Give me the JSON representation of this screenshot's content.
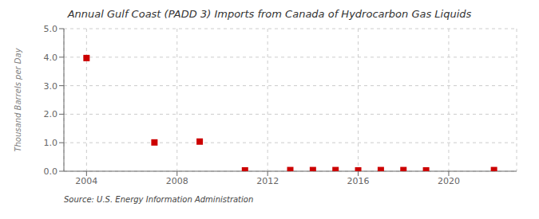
{
  "chart_data": {
    "type": "scatter",
    "title": "Annual Gulf Coast (PADD 3) Imports from Canada of Hydrocarbon Gas Liquids",
    "y_label": "Thousand Barrels per Day",
    "annotation": "Source: U.S. Energy Information Administration",
    "x": [
      2004,
      2007,
      2009,
      2011,
      2013,
      2014,
      2015,
      2016,
      2017,
      2018,
      2019,
      2022
    ],
    "values": [
      3.97,
      1.01,
      1.04,
      0.03,
      0.04,
      0.04,
      0.04,
      0.03,
      0.04,
      0.04,
      0.03,
      0.04
    ],
    "color": "#cc0000",
    "marker": "square",
    "xlim": [
      2003.0,
      2023.0
    ],
    "xticks": [
      2004,
      2008,
      2012,
      2016,
      2020
    ],
    "ylim": [
      0.0,
      5.0
    ],
    "yticks": [
      {
        "value": 0.0,
        "label": "0.0"
      },
      {
        "value": 1.0,
        "label": "1.0"
      },
      {
        "value": 2.0,
        "label": "2.0"
      },
      {
        "value": 3.0,
        "label": "3.0"
      },
      {
        "value": 4.0,
        "label": "4.0"
      },
      {
        "value": 5.0,
        "label": "5.0"
      }
    ],
    "grid": true
  }
}
